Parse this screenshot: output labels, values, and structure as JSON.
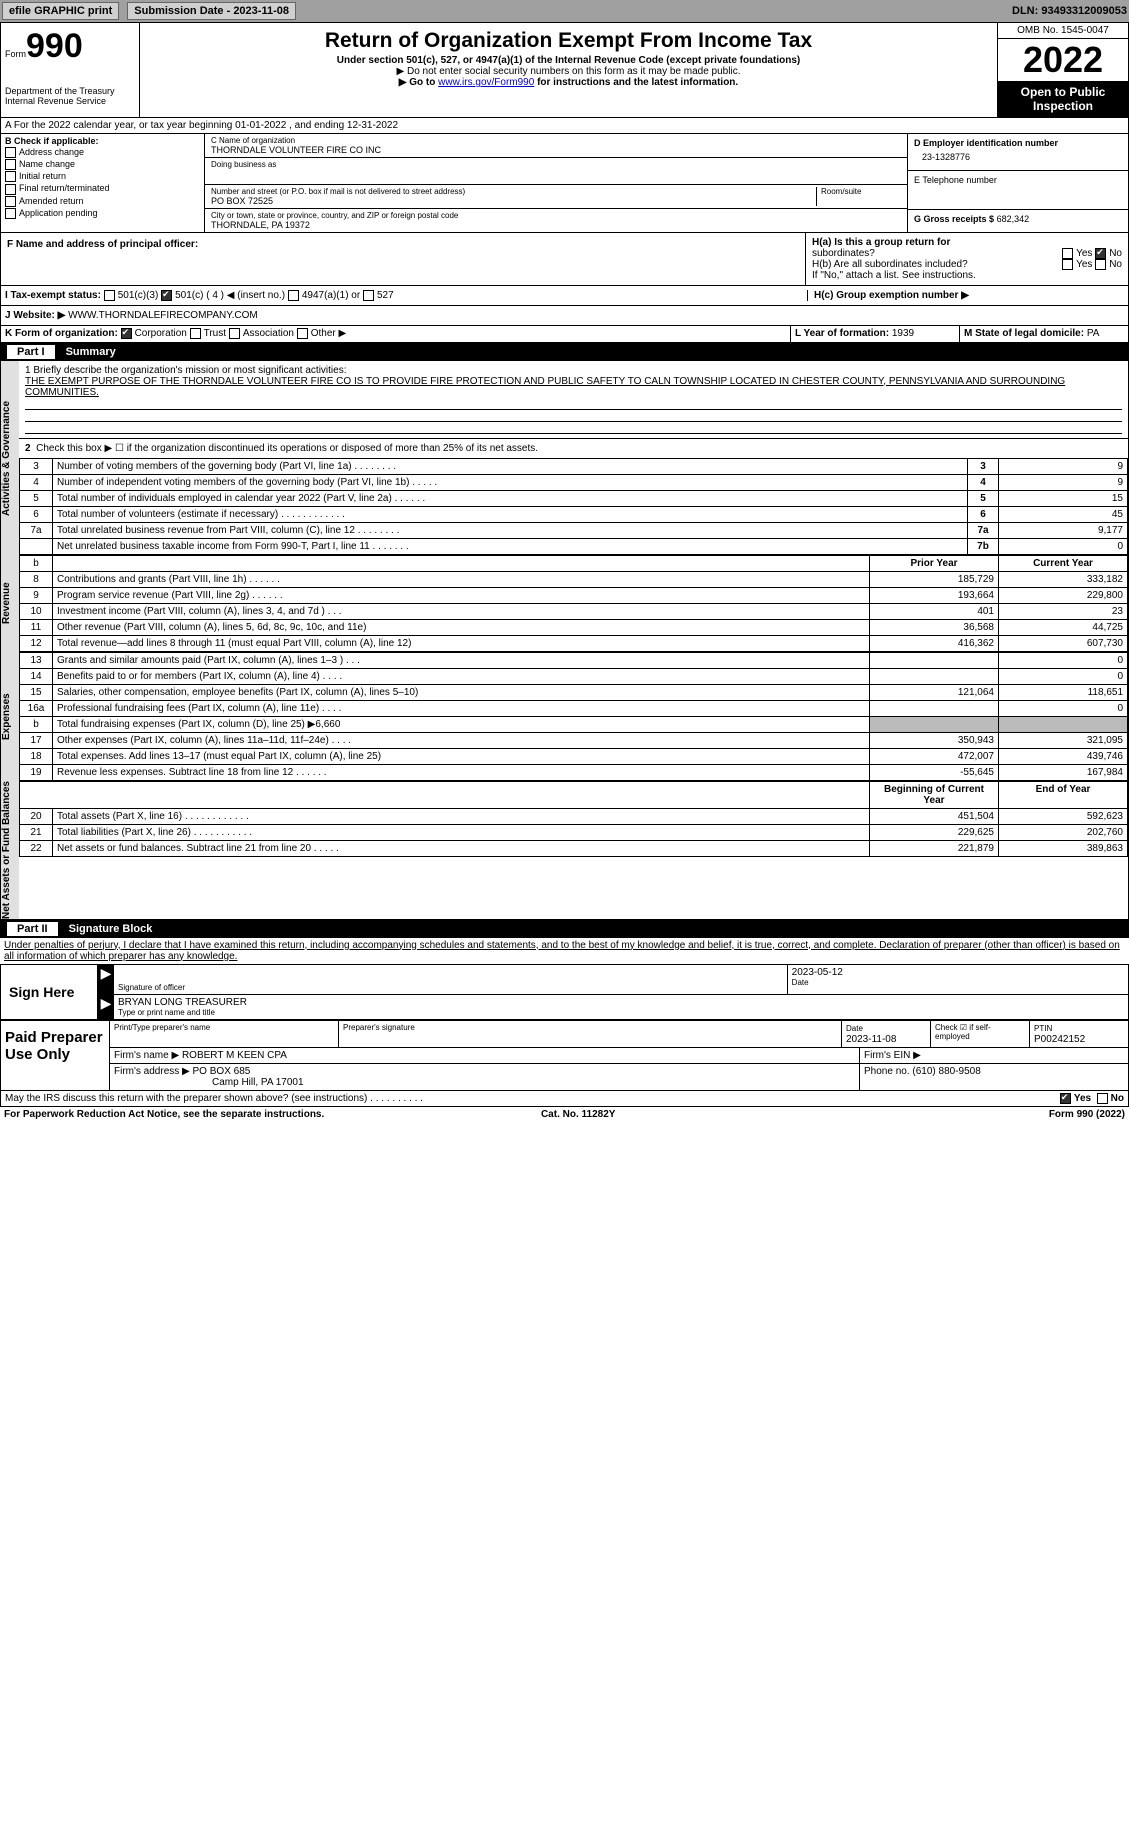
{
  "topbar": {
    "efile": "efile GRAPHIC print",
    "submission": "Submission Date - 2023-11-08",
    "dln": "DLN: 93493312009053"
  },
  "header": {
    "form_prefix": "Form",
    "form_num": "990",
    "dept": "Department of the Treasury",
    "irs": "Internal Revenue Service",
    "title": "Return of Organization Exempt From Income Tax",
    "sub1": "Under section 501(c), 527, or 4947(a)(1) of the Internal Revenue Code (except private foundations)",
    "sub2": "▶ Do not enter social security numbers on this form as it may be made public.",
    "sub3_a": "▶ Go to ",
    "sub3_link": "www.irs.gov/Form990",
    "sub3_b": " for instructions and the latest information.",
    "omb": "OMB No. 1545-0047",
    "year": "2022",
    "inspection": "Open to Public Inspection"
  },
  "section_a": "A  For the 2022 calendar year, or tax year beginning 01-01-2022    , and ending 12-31-2022",
  "section_b": {
    "title": "B Check if applicable:",
    "items": [
      "Address change",
      "Name change",
      "Initial return",
      "Final return/terminated",
      "Amended return",
      "Application pending"
    ]
  },
  "section_c": {
    "name_label": "C Name of organization",
    "name": "THORNDALE VOLUNTEER FIRE CO INC",
    "dba_label": "Doing business as",
    "addr_label": "Number and street (or P.O. box if mail is not delivered to street address)",
    "addr": "PO BOX 72525",
    "room_label": "Room/suite",
    "city_label": "City or town, state or province, country, and ZIP or foreign postal code",
    "city": "THORNDALE, PA  19372"
  },
  "section_d": {
    "ein_label": "D Employer identification number",
    "ein": "23-1328776",
    "phone_label": "E Telephone number",
    "gross_label": "G Gross receipts $",
    "gross": "682,342"
  },
  "section_f": "F Name and address of principal officer:",
  "section_h": {
    "ha": "H(a)  Is this a group return for",
    "ha2": "subordinates?",
    "hb": "H(b) Are all subordinates included?",
    "hb2": "If \"No,\" attach a list. See instructions.",
    "hc": "H(c)  Group exemption number ▶"
  },
  "tax_exempt": {
    "label": "I  Tax-exempt status:",
    "opts": [
      "501(c)(3)",
      "501(c) ( 4 ) ◀ (insert no.)",
      "4947(a)(1) or",
      "527"
    ]
  },
  "website": {
    "label": "J  Website: ▶",
    "val": "WWW.THORNDALEFIRECOMPANY.COM"
  },
  "form_org": {
    "label": "K Form of organization:",
    "opts": [
      "Corporation",
      "Trust",
      "Association",
      "Other ▶"
    ],
    "year_label": "L Year of formation:",
    "year": "1939",
    "state_label": "M State of legal domicile:",
    "state": "PA"
  },
  "part1": {
    "label": "Part I",
    "title": "Summary"
  },
  "mission": {
    "label": "1  Briefly describe the organization's mission or most significant activities:",
    "text": "THE EXEMPT PURPOSE OF THE THORNDALE VOLUNTEER FIRE CO IS TO PROVIDE FIRE PROTECTION AND PUBLIC SAFETY TO CALN TOWNSHIP LOCATED IN CHESTER COUNTY, PENNSYLVANIA AND SURROUNDING COMMUNITIES."
  },
  "line2": "Check this box ▶ ☐ if the organization discontinued its operations or disposed of more than 25% of its net assets.",
  "vert_labels": {
    "ag": "Activities & Governance",
    "rev": "Revenue",
    "exp": "Expenses",
    "net": "Net Assets or Fund Balances"
  },
  "lines_single": [
    {
      "n": "3",
      "d": "Number of voting members of the governing body (Part VI, line 1a)   .    .    .    .    .    .    .    .",
      "ln": "3",
      "v": "9"
    },
    {
      "n": "4",
      "d": "Number of independent voting members of the governing body (Part VI, line 1b)   .    .    .    .    .",
      "ln": "4",
      "v": "9"
    },
    {
      "n": "5",
      "d": "Total number of individuals employed in calendar year 2022 (Part V, line 2a)   .    .    .    .    .    .",
      "ln": "5",
      "v": "15"
    },
    {
      "n": "6",
      "d": "Total number of volunteers (estimate if necessary)   .    .    .    .    .    .    .    .    .    .    .    .",
      "ln": "6",
      "v": "45"
    },
    {
      "n": "7a",
      "d": "Total unrelated business revenue from Part VIII, column (C), line 12   .    .    .    .    .    .    .    .",
      "ln": "7a",
      "v": "9,177"
    },
    {
      "n": "",
      "d": "Net unrelated business taxable income from Form 990-T, Part I, line 11   .    .    .    .    .    .    .",
      "ln": "7b",
      "v": "0"
    }
  ],
  "col_headers": {
    "b": "b",
    "prior": "Prior Year",
    "current": "Current Year"
  },
  "rev_lines": [
    {
      "n": "8",
      "d": "Contributions and grants (Part VIII, line 1h)   .    .    .    .    .    .",
      "p": "185,729",
      "c": "333,182"
    },
    {
      "n": "9",
      "d": "Program service revenue (Part VIII, line 2g)   .    .    .    .    .    .",
      "p": "193,664",
      "c": "229,800"
    },
    {
      "n": "10",
      "d": "Investment income (Part VIII, column (A), lines 3, 4, and 7d )   .    .    .",
      "p": "401",
      "c": "23"
    },
    {
      "n": "11",
      "d": "Other revenue (Part VIII, column (A), lines 5, 6d, 8c, 9c, 10c, and 11e)",
      "p": "36,568",
      "c": "44,725"
    },
    {
      "n": "12",
      "d": "Total revenue—add lines 8 through 11 (must equal Part VIII, column (A), line 12)",
      "p": "416,362",
      "c": "607,730"
    }
  ],
  "exp_lines": [
    {
      "n": "13",
      "d": "Grants and similar amounts paid (Part IX, column (A), lines 1–3 )   .    .    .",
      "p": "",
      "c": "0"
    },
    {
      "n": "14",
      "d": "Benefits paid to or for members (Part IX, column (A), line 4)   .    .    .    .",
      "p": "",
      "c": "0"
    },
    {
      "n": "15",
      "d": "Salaries, other compensation, employee benefits (Part IX, column (A), lines 5–10)",
      "p": "121,064",
      "c": "118,651"
    },
    {
      "n": "16a",
      "d": "Professional fundraising fees (Part IX, column (A), line 11e)   .    .    .    .",
      "p": "",
      "c": "0"
    },
    {
      "n": "b",
      "d": "Total fundraising expenses (Part IX, column (D), line 25) ▶6,660",
      "p": "GRAY",
      "c": "GRAY"
    },
    {
      "n": "17",
      "d": "Other expenses (Part IX, column (A), lines 11a–11d, 11f–24e)   .    .    .    .",
      "p": "350,943",
      "c": "321,095"
    },
    {
      "n": "18",
      "d": "Total expenses. Add lines 13–17 (must equal Part IX, column (A), line 25)",
      "p": "472,007",
      "c": "439,746"
    },
    {
      "n": "19",
      "d": "Revenue less expenses. Subtract line 18 from line 12   .    .    .    .    .    .",
      "p": "-55,645",
      "c": "167,984"
    }
  ],
  "net_headers": {
    "begin": "Beginning of Current Year",
    "end": "End of Year"
  },
  "net_lines": [
    {
      "n": "20",
      "d": "Total assets (Part X, line 16)   .    .    .    .    .    .    .    .    .    .    .    .",
      "p": "451,504",
      "c": "592,623"
    },
    {
      "n": "21",
      "d": "Total liabilities (Part X, line 26)   .    .    .    .    .    .    .    .    .    .    .",
      "p": "229,625",
      "c": "202,760"
    },
    {
      "n": "22",
      "d": "Net assets or fund balances. Subtract line 21 from line 20   .    .    .    .    .",
      "p": "221,879",
      "c": "389,863"
    }
  ],
  "part2": {
    "label": "Part II",
    "title": "Signature Block"
  },
  "sig_decl": "Under penalties of perjury, I declare that I have examined this return, including accompanying schedules and statements, and to the best of my knowledge and belief, it is true, correct, and complete. Declaration of preparer (other than officer) is based on all information of which preparer has any knowledge.",
  "sign_here": "Sign Here",
  "sig": {
    "sig_label": "Signature of officer",
    "date": "2023-05-12",
    "date_label": "Date",
    "name": "BRYAN LONG  TREASURER",
    "name_label": "Type or print name and title"
  },
  "paid_prep": {
    "label": "Paid Preparer Use Only",
    "print_label": "Print/Type preparer's name",
    "sig_label": "Preparer's signature",
    "date_label": "Date",
    "date": "2023-11-08",
    "check_label": "Check ☑ if self-employed",
    "ptin_label": "PTIN",
    "ptin": "P00242152",
    "firm_name_label": "Firm's name    ▶",
    "firm_name": "ROBERT M KEEN CPA",
    "firm_ein_label": "Firm's EIN ▶",
    "firm_addr_label": "Firm's address ▶",
    "firm_addr": "PO BOX 685",
    "firm_city": "Camp Hill, PA  17001",
    "phone_label": "Phone no.",
    "phone": "(610) 880-9508"
  },
  "may_discuss": "May the IRS discuss this return with the preparer shown above? (see instructions)   .    .    .    .    .    .    .    .    .    .",
  "yes": "Yes",
  "no": "No",
  "footer": {
    "left": "For Paperwork Reduction Act Notice, see the separate instructions.",
    "mid": "Cat. No. 11282Y",
    "right": "Form 990 (2022)"
  }
}
